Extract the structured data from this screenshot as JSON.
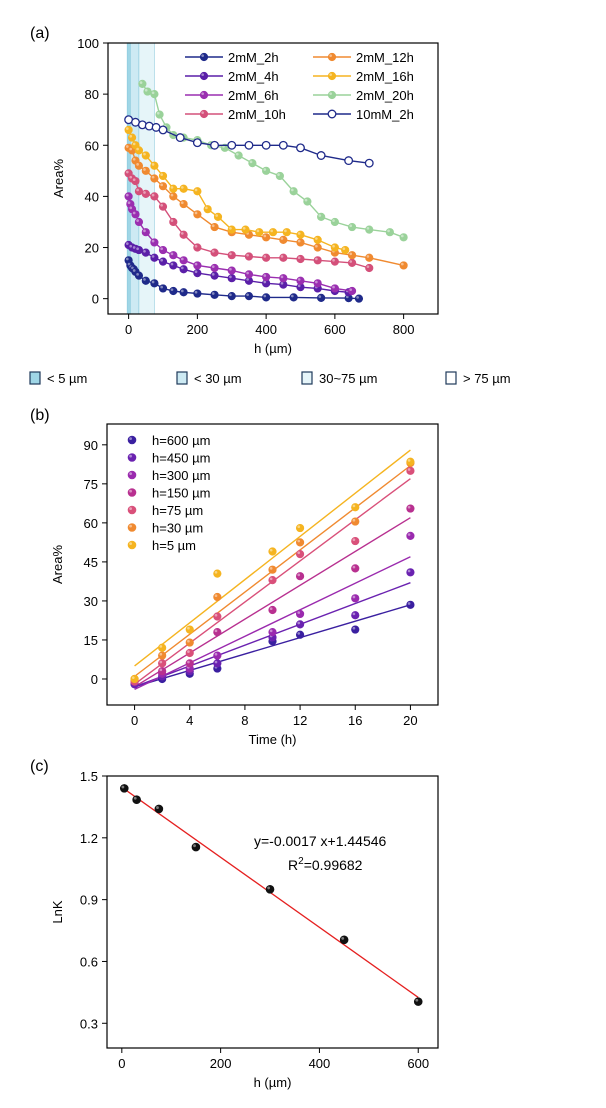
{
  "chart_data": [
    {
      "panel": "(a)",
      "type": "line",
      "xlabel": "h (µm)",
      "ylabel": "Area%",
      "xlim": [
        -60,
        900
      ],
      "ylim": [
        -6,
        100
      ],
      "xticks": [
        0,
        200,
        400,
        600,
        800
      ],
      "yticks": [
        0,
        20,
        40,
        60,
        80,
        100
      ],
      "regions": [
        {
          "label": "< 5 µm",
          "range": [
            0,
            5
          ],
          "color": "#9fd6e6"
        },
        {
          "label": "< 30 µm",
          "range": [
            5,
            30
          ],
          "color": "#cdeaf3"
        },
        {
          "label": "30~75 µm",
          "range": [
            30,
            75
          ],
          "color": "#e6f5f9"
        },
        {
          "label": "> 75 µm",
          "range": [
            75,
            900
          ],
          "color": "#ffffff"
        }
      ],
      "legend": [
        "2mM_2h",
        "2mM_4h",
        "2mM_6h",
        "2mM_10h",
        "2mM_12h",
        "2mM_16h",
        "2mM_20h",
        "10mM_2h"
      ],
      "series": [
        {
          "name": "2mM_2h",
          "color": "#1f2a8a",
          "filled": true,
          "x": [
            0,
            5,
            10,
            15,
            20,
            30,
            50,
            75,
            100,
            130,
            160,
            200,
            250,
            300,
            350,
            400,
            480,
            560,
            640,
            670
          ],
          "y": [
            15,
            13,
            12,
            11.5,
            10.5,
            9,
            7,
            6,
            4,
            3,
            2.5,
            2,
            1.5,
            1,
            1,
            0.5,
            0.5,
            0.3,
            0.2,
            0
          ]
        },
        {
          "name": "2mM_4h",
          "color": "#5a1fa8",
          "filled": true,
          "x": [
            0,
            10,
            20,
            30,
            50,
            75,
            100,
            130,
            160,
            200,
            250,
            300,
            350,
            400,
            450,
            500,
            550,
            600,
            640
          ],
          "y": [
            21,
            20,
            19.5,
            19,
            18,
            16,
            14.5,
            13,
            11.5,
            10,
            9,
            8,
            7,
            6,
            5.5,
            4.5,
            4,
            3,
            2.5
          ]
        },
        {
          "name": "2mM_6h",
          "color": "#9a2fb0",
          "filled": true,
          "x": [
            0,
            5,
            10,
            20,
            30,
            50,
            75,
            100,
            130,
            160,
            200,
            250,
            300,
            350,
            400,
            450,
            500,
            550,
            600,
            650
          ],
          "y": [
            40,
            37,
            35,
            33,
            30,
            26,
            22,
            19,
            17,
            15,
            13,
            12,
            11,
            9.5,
            8.5,
            8,
            7,
            6,
            4,
            3
          ]
        },
        {
          "name": "2mM_10h",
          "color": "#d4507a",
          "filled": true,
          "x": [
            0,
            10,
            20,
            30,
            50,
            75,
            100,
            130,
            160,
            200,
            250,
            300,
            350,
            400,
            450,
            500,
            550,
            600,
            650,
            700
          ],
          "y": [
            49,
            47,
            46,
            42,
            41,
            40,
            36,
            30,
            25,
            20,
            18,
            17,
            16.5,
            16,
            16,
            15.5,
            15,
            14.5,
            14,
            12
          ]
        },
        {
          "name": "2mM_12h",
          "color": "#f08a30",
          "filled": true,
          "x": [
            0,
            10,
            20,
            30,
            50,
            75,
            100,
            130,
            160,
            200,
            250,
            300,
            350,
            400,
            450,
            500,
            550,
            600,
            650,
            700,
            800
          ],
          "y": [
            59,
            58,
            54,
            52,
            50,
            47,
            44,
            40,
            37,
            33,
            28,
            26,
            25,
            24,
            23,
            22,
            20,
            18,
            17,
            16,
            13
          ]
        },
        {
          "name": "2mM_16h",
          "color": "#f5b420",
          "filled": true,
          "x": [
            0,
            10,
            20,
            30,
            50,
            75,
            100,
            130,
            160,
            200,
            230,
            260,
            300,
            340,
            380,
            420,
            460,
            500,
            550,
            600,
            630
          ],
          "y": [
            66,
            63,
            60,
            58,
            56,
            52,
            48,
            43,
            43,
            42,
            35,
            32,
            27,
            27,
            26,
            26,
            26,
            25,
            23,
            20,
            19
          ]
        },
        {
          "name": "2mM_20h",
          "color": "#9ad29a",
          "filled": true,
          "x": [
            40,
            55,
            75,
            90,
            110,
            130,
            160,
            200,
            240,
            280,
            320,
            360,
            400,
            440,
            480,
            520,
            560,
            600,
            650,
            700,
            760,
            800
          ],
          "y": [
            84,
            81,
            80,
            72,
            67,
            64,
            63,
            62,
            60,
            59,
            56,
            53,
            50,
            48,
            42,
            38,
            32,
            30,
            28,
            27,
            26,
            24
          ]
        },
        {
          "name": "10mM_2h",
          "color": "#1f2a8a",
          "filled": false,
          "x": [
            0,
            20,
            40,
            60,
            80,
            100,
            150,
            200,
            250,
            300,
            350,
            400,
            450,
            500,
            560,
            640,
            700
          ],
          "y": [
            70,
            69,
            68,
            67.5,
            67,
            66,
            63,
            61,
            60,
            60,
            60,
            60,
            60,
            59,
            56,
            54,
            53
          ]
        }
      ]
    },
    {
      "panel": "(b)",
      "type": "scatter",
      "xlabel": "Time (h)",
      "ylabel": "Area%",
      "xlim": [
        -2,
        22
      ],
      "ylim": [
        -10,
        98
      ],
      "xticks": [
        0,
        4,
        8,
        12,
        16,
        20
      ],
      "yticks": [
        0,
        15,
        30,
        45,
        60,
        75,
        90
      ],
      "legend": [
        "h=600 µm",
        "h=450 µm",
        "h=300 µm",
        "h=150 µm",
        "h=75 µm",
        "h=30 µm",
        "h=5 µm"
      ],
      "series": [
        {
          "name": "h=600 µm",
          "color": "#3a1fa0",
          "x": [
            0,
            2,
            4,
            6,
            10,
            12,
            16,
            20
          ],
          "y": [
            -2,
            0,
            2,
            4,
            14.5,
            17,
            19,
            28.5
          ],
          "fit": [
            -3,
            28.5
          ]
        },
        {
          "name": "h=450 µm",
          "color": "#6a22b0",
          "x": [
            0,
            2,
            4,
            6,
            10,
            12,
            16,
            20
          ],
          "y": [
            -2,
            1,
            3,
            6,
            16,
            21,
            24.5,
            41
          ],
          "fit": [
            -3,
            37
          ]
        },
        {
          "name": "h=300 µm",
          "color": "#9a2aae",
          "x": [
            0,
            2,
            4,
            6,
            10,
            12,
            16,
            20
          ],
          "y": [
            -1,
            2,
            4,
            9,
            18,
            25,
            31,
            55
          ],
          "fit": [
            -4,
            47
          ]
        },
        {
          "name": "h=150 µm",
          "color": "#b83090",
          "x": [
            0,
            2,
            4,
            6,
            10,
            12,
            16,
            20
          ],
          "y": [
            -1,
            3,
            6,
            18,
            26.5,
            39.5,
            42.5,
            65.5
          ],
          "fit": [
            -3,
            62
          ]
        },
        {
          "name": "h=75 µm",
          "color": "#d9507a",
          "x": [
            0,
            2,
            4,
            6,
            10,
            12,
            16,
            20
          ],
          "y": [
            -1,
            6,
            10,
            24,
            38,
            48,
            53,
            80
          ],
          "fit": [
            -2,
            77
          ]
        },
        {
          "name": "h=30 µm",
          "color": "#f08a30",
          "x": [
            0,
            2,
            4,
            6,
            10,
            12,
            16,
            20
          ],
          "y": [
            0,
            9,
            14,
            31.5,
            42,
            52.5,
            60.5,
            83
          ],
          "fit": [
            1,
            82
          ]
        },
        {
          "name": "h=5 µm",
          "color": "#f5b420",
          "x": [
            0,
            2,
            4,
            6,
            10,
            12,
            16,
            20
          ],
          "y": [
            0,
            12,
            19,
            40.5,
            49,
            58,
            66,
            83.5
          ],
          "fit": [
            5,
            88
          ]
        }
      ]
    },
    {
      "panel": "(c)",
      "type": "scatter",
      "xlabel": "h (µm)",
      "ylabel": "LnK",
      "xlim": [
        -30,
        640
      ],
      "ylim": [
        0.18,
        1.5
      ],
      "xticks": [
        0,
        200,
        400,
        600
      ],
      "yticks": [
        0.3,
        0.6,
        0.9,
        1.2,
        1.5
      ],
      "ytick_labels": [
        "0.3",
        "0.6",
        "0.9",
        "1.2",
        "1.5"
      ],
      "annotation": {
        "equation": "y=-0.0017 x+1.44546",
        "r2_label": "R",
        "r2_sup": "2",
        "r2_value": "=0.99682"
      },
      "series": [
        {
          "name": "LnK",
          "color": "#000000",
          "x": [
            5,
            30,
            75,
            150,
            300,
            450,
            600
          ],
          "y": [
            1.44,
            1.385,
            1.34,
            1.155,
            0.95,
            0.705,
            0.405
          ]
        }
      ],
      "fit_line": {
        "color": "#e52020",
        "x": [
          0,
          600
        ],
        "y": [
          1.44546,
          0.42546
        ]
      }
    }
  ]
}
